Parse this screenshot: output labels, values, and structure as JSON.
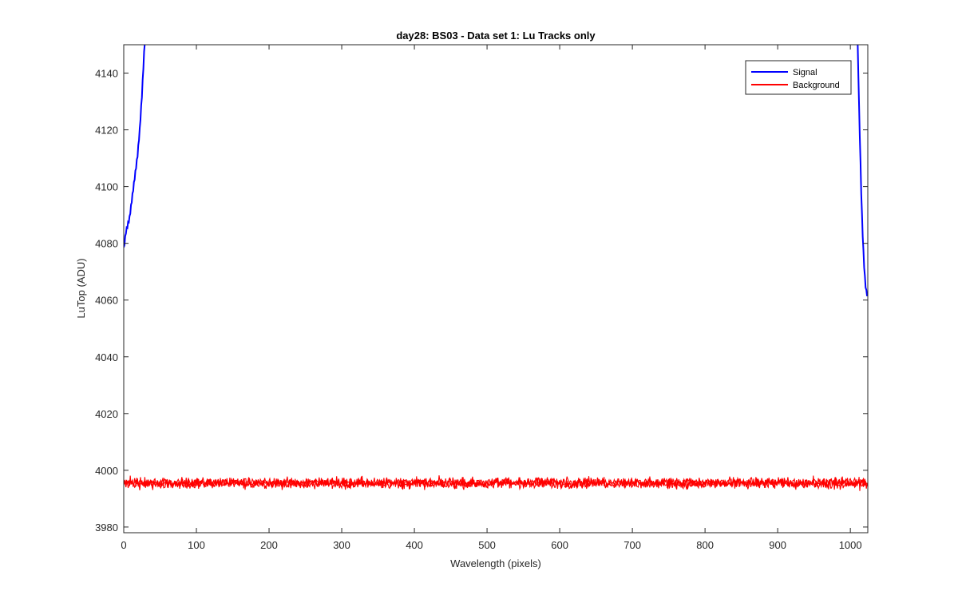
{
  "chart_data": {
    "type": "line",
    "title": "day28: BS03 - Data set 1: Lu Tracks only",
    "xlabel": "Wavelength (pixels)",
    "ylabel": "LuTop (ADU)",
    "xlim": [
      0,
      1024
    ],
    "ylim": [
      3978,
      4150
    ],
    "xticks": [
      0,
      100,
      200,
      300,
      400,
      500,
      600,
      700,
      800,
      900,
      1000
    ],
    "yticks": [
      3980,
      4000,
      4020,
      4040,
      4060,
      4080,
      4100,
      4120,
      4140
    ],
    "grid": false,
    "legend_position": "top-right",
    "series": [
      {
        "name": "Signal",
        "color": "#0000ff",
        "segments": [
          {
            "x": [
              0,
              1,
              2,
              3,
              4,
              5,
              6,
              7,
              8,
              9,
              10,
              11,
              12,
              13,
              14,
              15,
              16,
              17,
              18,
              19,
              20,
              21,
              22,
              23,
              24,
              25,
              26,
              27,
              28,
              29
            ],
            "y": [
              4078,
              4080,
              4082,
              4084,
              4085,
              4086,
              4087,
              4088,
              4089,
              4091,
              4093,
              4095,
              4097,
              4099,
              4101,
              4103,
              4105,
              4107,
              4109,
              4111,
              4114,
              4117,
              4120,
              4124,
              4128,
              4132,
              4137,
              4142,
              4147,
              4151
            ]
          },
          {
            "x": [
              1010,
              1011,
              1012,
              1013,
              1014,
              1015,
              1016,
              1017,
              1018,
              1019,
              1020,
              1021,
              1022,
              1023,
              1024
            ],
            "y": [
              4151,
              4140,
              4128,
              4118,
              4108,
              4098,
              4090,
              4083,
              4077,
              4072,
              4068,
              4065,
              4063,
              4062,
              4062
            ]
          }
        ]
      },
      {
        "name": "Background",
        "color": "#ff0000",
        "y_mean": 3995.5,
        "y_min": 3989,
        "y_max": 4000,
        "x_range": [
          0,
          1024
        ]
      }
    ]
  }
}
